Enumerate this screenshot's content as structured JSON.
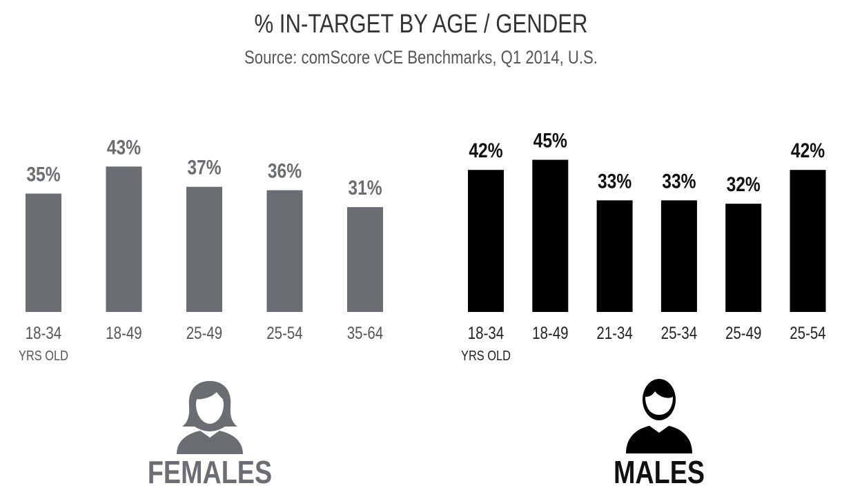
{
  "chart_data": [
    {
      "type": "bar",
      "title": "% IN-TARGET BY AGE / GENDER",
      "subtitle": "Source: comScore vCE Benchmarks, Q1 2014, U.S.",
      "panel": "FEMALES",
      "color": "#6a6e72",
      "categories": [
        "18-34",
        "18-49",
        "25-49",
        "25-54",
        "35-64"
      ],
      "category_sublabels": [
        "YRS OLD",
        "",
        "",
        "",
        ""
      ],
      "values": [
        35,
        43,
        37,
        36,
        31
      ],
      "value_labels": [
        "35%",
        "43%",
        "37%",
        "36%",
        "31%"
      ],
      "ylim": [
        0,
        100
      ]
    },
    {
      "type": "bar",
      "panel": "MALES",
      "color": "#000000",
      "categories": [
        "18-34",
        "18-49",
        "21-34",
        "25-34",
        "25-49",
        "25-54"
      ],
      "category_sublabels": [
        "YRS OLD",
        "",
        "",
        "",
        "",
        ""
      ],
      "values": [
        42,
        45,
        33,
        33,
        32,
        42
      ],
      "value_labels": [
        "42%",
        "45%",
        "33%",
        "33%",
        "32%",
        "42%"
      ],
      "ylim": [
        0,
        100
      ]
    }
  ],
  "icons": {
    "female": "female-person-icon",
    "male": "male-person-icon"
  }
}
